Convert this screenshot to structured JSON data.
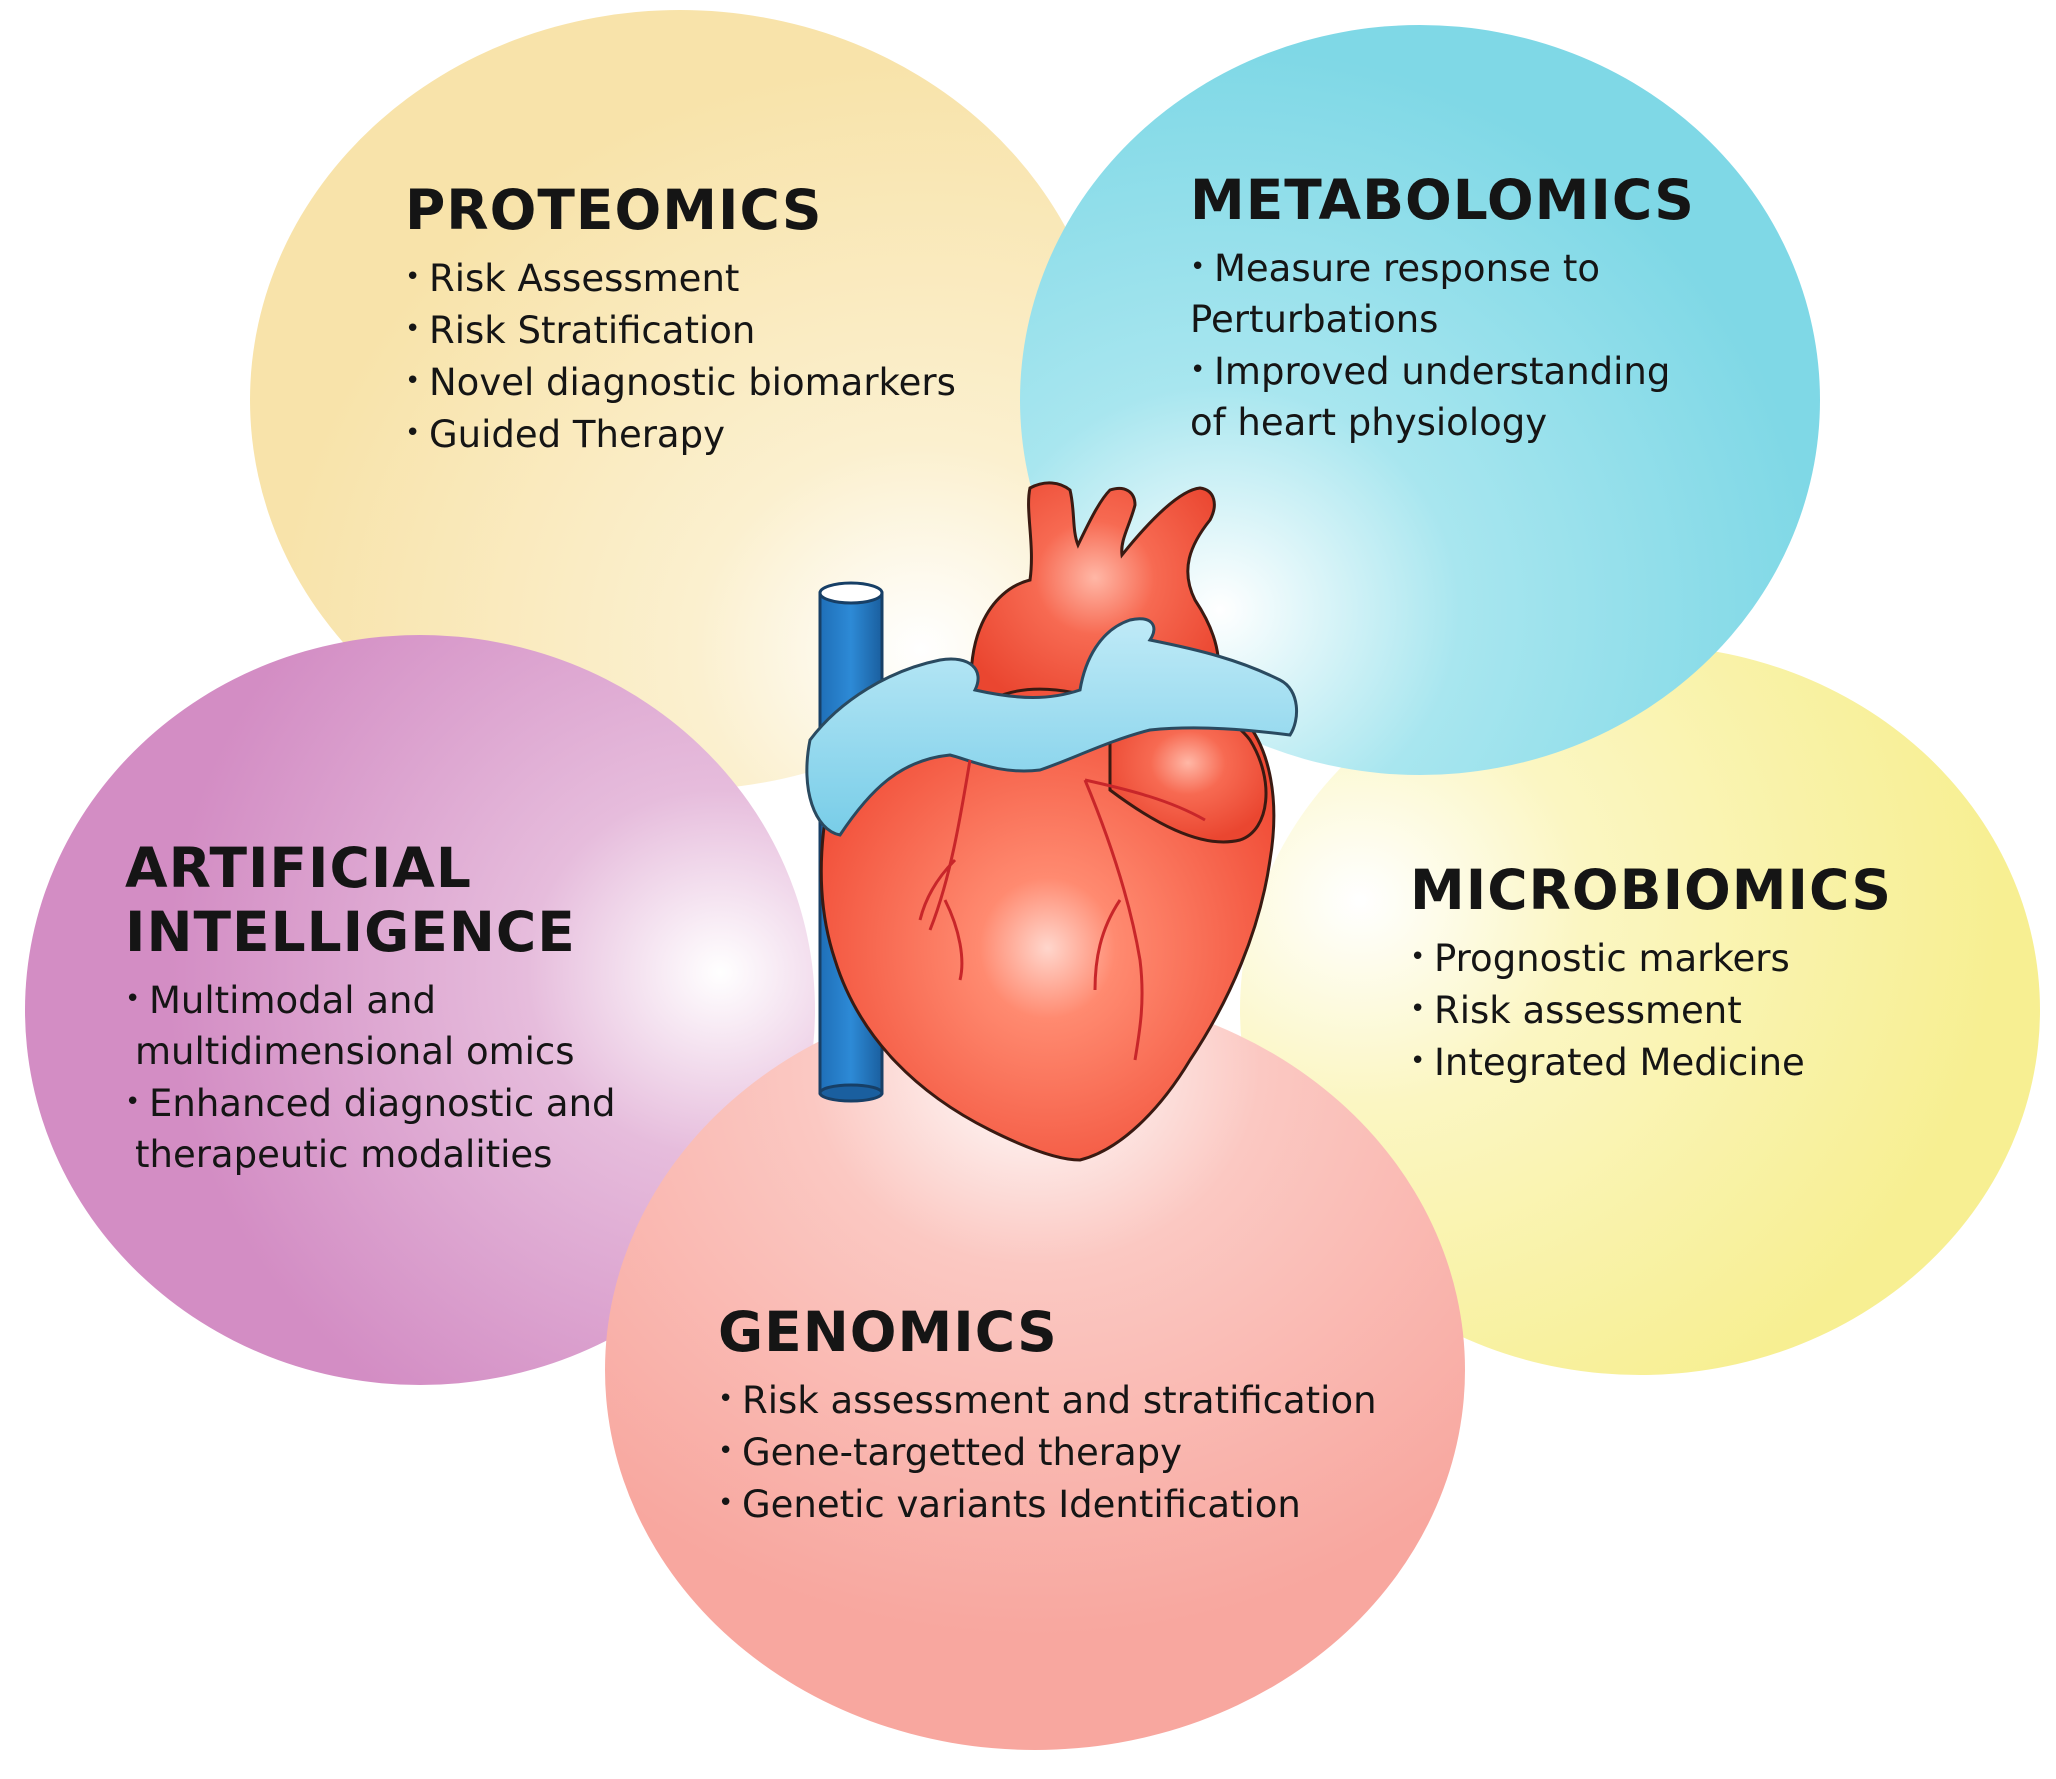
{
  "sections": {
    "proteomics": {
      "title": "PROTEOMICS",
      "color": "#f8e6b0",
      "bullets": [
        "Risk Assessment",
        "Risk Stratification",
        "Novel diagnostic biomarkers",
        "Guided Therapy"
      ]
    },
    "metabolomics": {
      "title": "METABOLOMICS",
      "color": "#86dbe8",
      "bullets": [
        "Measure response to",
        "Perturbations",
        "Improved understanding",
        "of heart physiology"
      ]
    },
    "microbiomics": {
      "title": "MICROBIOMICS",
      "color": "#f8f199",
      "bullets": [
        "Prognostic markers",
        "Risk assessment",
        "Integrated Medicine"
      ]
    },
    "artificial_intelligence": {
      "title_line1": "ARTIFICIAL",
      "title_line2": "INTELLIGENCE",
      "color": "#d590c6",
      "bullets": [
        "Multimodal and",
        "multidimensional omics",
        "Enhanced diagnostic and",
        "therapeutic modalities"
      ]
    },
    "genomics": {
      "title": "GENOMICS",
      "color": "#f9aba4",
      "bullets": [
        "Risk assessment and stratification",
        "Gene-targetted therapy",
        "Genetic variants Identification"
      ]
    }
  },
  "center": {
    "icon": "heart-icon"
  }
}
